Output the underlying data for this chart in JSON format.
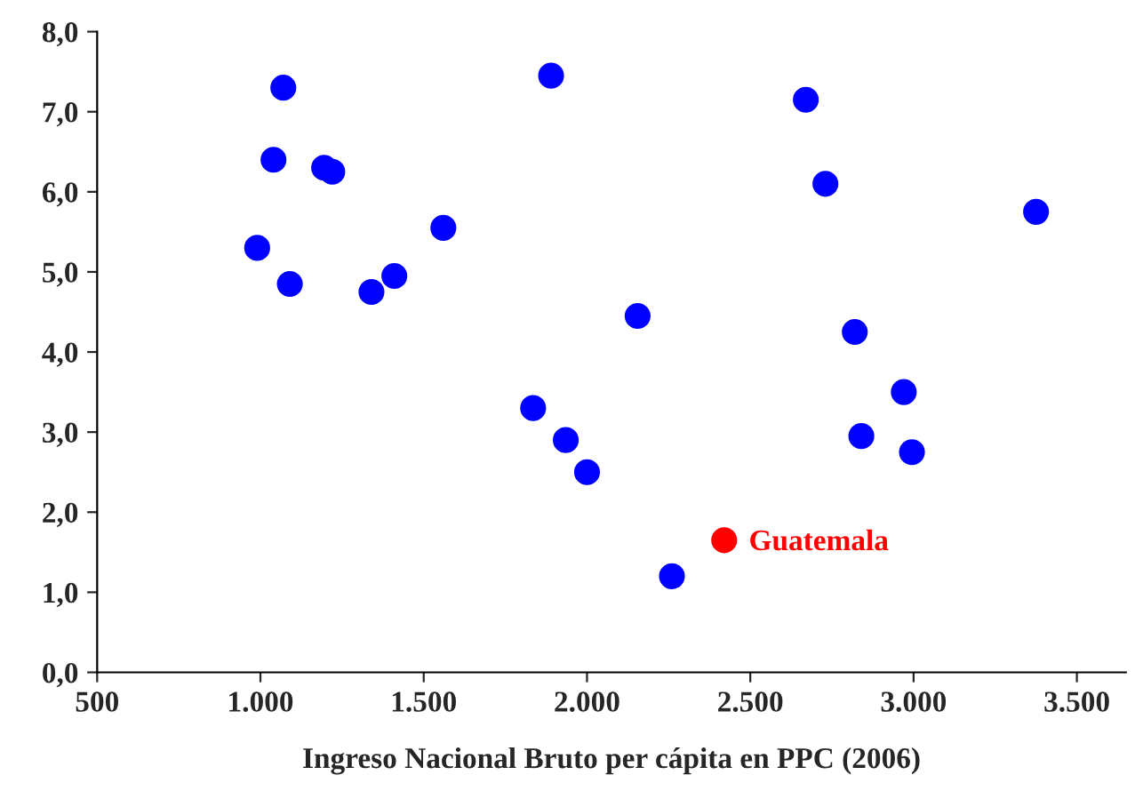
{
  "chart_data": {
    "type": "scatter",
    "xlabel": "Ingreso Nacional Bruto per cápita en PPC (2006)",
    "xlim": [
      500,
      3650
    ],
    "ylim": [
      0,
      8
    ],
    "xticks": [
      {
        "value": 500,
        "label": "500"
      },
      {
        "value": 1000,
        "label": "1.000"
      },
      {
        "value": 1500,
        "label": "1.500"
      },
      {
        "value": 2000,
        "label": "2.000"
      },
      {
        "value": 2500,
        "label": "2.500"
      },
      {
        "value": 3000,
        "label": "3.000"
      },
      {
        "value": 3500,
        "label": "3.500"
      }
    ],
    "yticks": [
      {
        "value": 0,
        "label": "0,0"
      },
      {
        "value": 1,
        "label": "1,0"
      },
      {
        "value": 2,
        "label": "2,0"
      },
      {
        "value": 3,
        "label": "3,0"
      },
      {
        "value": 4,
        "label": "4,0"
      },
      {
        "value": 5,
        "label": "5,0"
      },
      {
        "value": 6,
        "label": "6,0"
      },
      {
        "value": 7,
        "label": "7,0"
      },
      {
        "value": 8,
        "label": "8,0"
      }
    ],
    "grid": false,
    "marker": "circle",
    "series": [
      {
        "color": "#0000ff",
        "x": [
          990,
          1040,
          1070,
          1090,
          1195,
          1220,
          1340,
          1410,
          1560,
          1835,
          1890,
          1935,
          2000,
          2155,
          2260,
          2670,
          2730,
          2820,
          2840,
          2970,
          2995,
          3375
        ],
        "values": [
          5.3,
          6.4,
          7.3,
          4.85,
          6.3,
          6.25,
          4.75,
          4.95,
          5.55,
          3.3,
          7.45,
          2.9,
          2.5,
          4.45,
          1.2,
          7.15,
          6.1,
          4.25,
          2.95,
          3.5,
          2.75,
          5.75
        ]
      },
      {
        "color": "#ff0000",
        "x": [
          2420
        ],
        "values": [
          1.65
        ]
      }
    ],
    "annotations": [
      {
        "text": "Guatemala",
        "x": 2420,
        "y": 1.65
      }
    ]
  }
}
